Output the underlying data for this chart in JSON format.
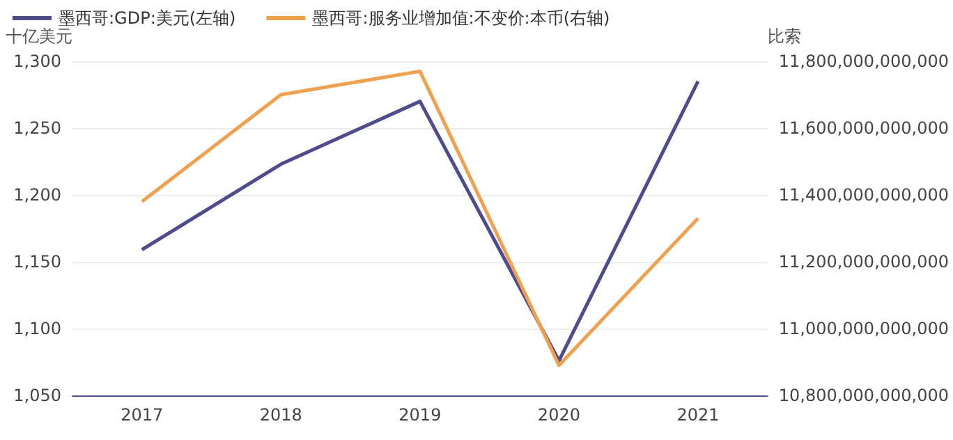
{
  "chart_data": {
    "type": "line",
    "categories": [
      "2017",
      "2018",
      "2019",
      "2020",
      "2021"
    ],
    "ylabel": "十亿美元",
    "y2label": "比索",
    "series": [
      {
        "name": "墨西哥:GDP:美元(左轴)",
        "color": "#4e4c8c",
        "values": [
          1159,
          1223,
          1270,
          1076,
          1285
        ]
      },
      {
        "name": "墨西哥:服务业增加值:不变价:本币(右轴)",
        "color": "#f0a150",
        "axis": "y2",
        "values": [
          11380000000000,
          11700000000000,
          11770000000000,
          10890000000000,
          11330000000000
        ]
      }
    ],
    "ylim": [
      1050,
      1300
    ],
    "yticks": [
      {
        "value": 1050,
        "label": "1,050"
      },
      {
        "value": 1100,
        "label": "1,100"
      },
      {
        "value": 1150,
        "label": "1,150"
      },
      {
        "value": 1200,
        "label": "1,200"
      },
      {
        "value": 1250,
        "label": "1,250"
      },
      {
        "value": 1300,
        "label": "1,300"
      }
    ],
    "y2lim": [
      10800000000000,
      11800000000000
    ],
    "y2ticks": [
      {
        "value": 10800000000000,
        "label": "10,800,000,000,000"
      },
      {
        "value": 11000000000000,
        "label": "11,000,000,000,000"
      },
      {
        "value": 11200000000000,
        "label": "11,200,000,000,000"
      },
      {
        "value": 11400000000000,
        "label": "11,400,000,000,000"
      },
      {
        "value": 11600000000000,
        "label": "11,600,000,000,000"
      },
      {
        "value": 11800000000000,
        "label": "11,800,000,000,000"
      }
    ],
    "grid": "y",
    "legend": "top left",
    "marker": "none",
    "line_style": "solid"
  }
}
